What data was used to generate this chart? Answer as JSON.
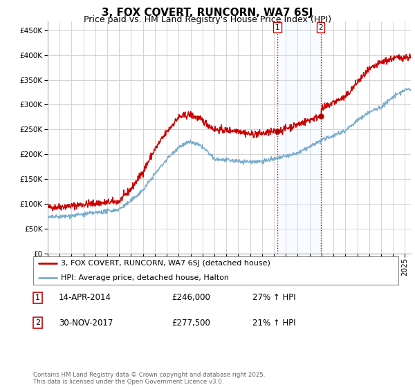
{
  "title": "3, FOX COVERT, RUNCORN, WA7 6SJ",
  "subtitle": "Price paid vs. HM Land Registry's House Price Index (HPI)",
  "ytick_values": [
    0,
    50000,
    100000,
    150000,
    200000,
    250000,
    300000,
    350000,
    400000,
    450000
  ],
  "ylim": [
    0,
    468000
  ],
  "xlim_start": 1995.0,
  "xlim_end": 2025.5,
  "red_line_color": "#cc0000",
  "blue_line_color": "#7aadcf",
  "shade_color": "#ddeeff",
  "marker1_date": 2014.28,
  "marker1_value": 246000,
  "marker2_date": 2017.92,
  "marker2_value": 277500,
  "legend_red_label": "3, FOX COVERT, RUNCORN, WA7 6SJ (detached house)",
  "legend_blue_label": "HPI: Average price, detached house, Halton",
  "footer": "Contains HM Land Registry data © Crown copyright and database right 2025.\nThis data is licensed under the Open Government Licence v3.0.",
  "grid_color": "#cccccc",
  "title_fontsize": 11,
  "subtitle_fontsize": 9,
  "tick_fontsize": 7.5,
  "vline_color": "#cc0000"
}
